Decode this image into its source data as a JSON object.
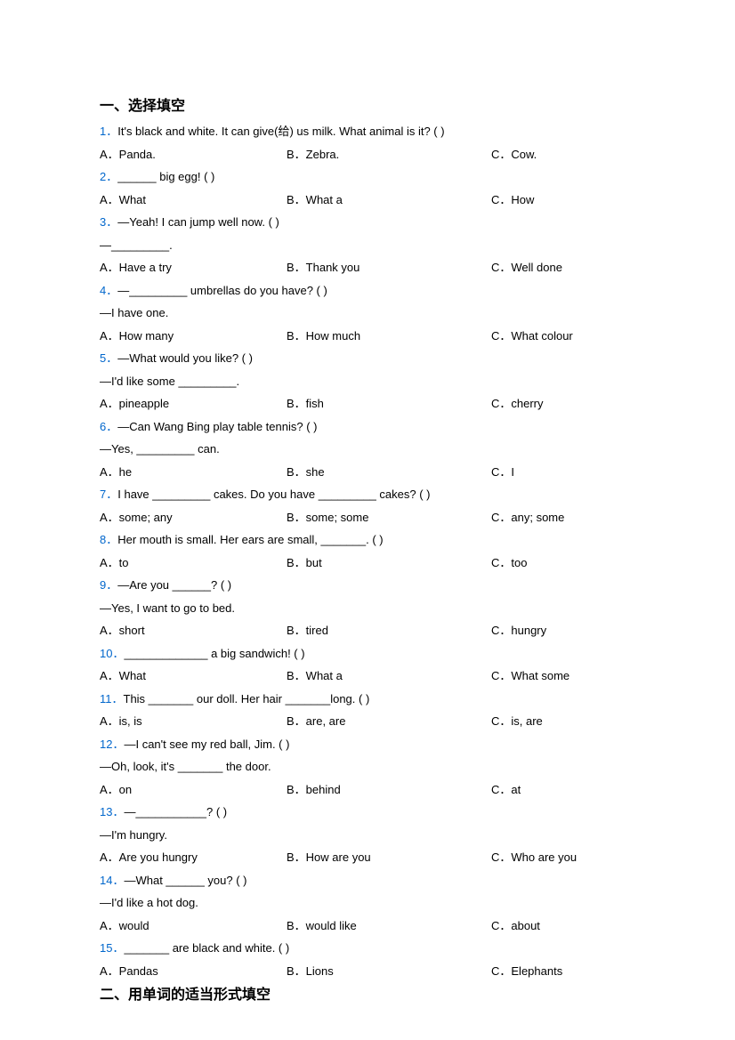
{
  "section1": {
    "heading": "一、选择填空",
    "questions": [
      {
        "num": "1．",
        "text": "It's black and white. It can give(给) us milk. What animal is it? (    )",
        "opts": {
          "a": "A．Panda.",
          "b": "B．Zebra.",
          "c": "C．Cow."
        }
      },
      {
        "num": "2．",
        "text": "______ big egg! (    )",
        "opts": {
          "a": "A．What",
          "b": "B．What a",
          "c": "C．How"
        }
      },
      {
        "num": "3．",
        "text": "—Yeah! I can jump well now. (    )",
        "cont": [
          "—_________."
        ],
        "opts": {
          "a": "A．Have a try",
          "b": "B．Thank you",
          "c": "C．Well done"
        }
      },
      {
        "num": "4．",
        "text": "—_________ umbrellas do you have? (    )",
        "cont": [
          "—I have one."
        ],
        "opts": {
          "a": "A．How many",
          "b": "B．How much",
          "c": "C．What colour"
        }
      },
      {
        "num": "5．",
        "text": "—What would you like? (    )",
        "cont": [
          "—I'd like some _________."
        ],
        "opts": {
          "a": "A．pineapple",
          "b": "B．fish",
          "c": "C．cherry"
        }
      },
      {
        "num": "6．",
        "text": "—Can Wang Bing play table tennis? (    )",
        "cont": [
          "—Yes, _________ can."
        ],
        "opts": {
          "a": "A．he",
          "b": "B．she",
          "c": "C．I"
        }
      },
      {
        "num": "7．",
        "text": "I have _________ cakes. Do you have _________ cakes? (    )",
        "opts": {
          "a": "A．some; any",
          "b": "B．some; some",
          "c": "C．any; some"
        }
      },
      {
        "num": "8．",
        "text": "Her mouth is small. Her ears are small, _______. (    )",
        "opts": {
          "a": "A．to",
          "b": "B．but",
          "c": "C．too"
        }
      },
      {
        "num": "9．",
        "text": "—Are you ______? (     )",
        "cont": [
          "—Yes, I want to go to bed."
        ],
        "opts": {
          "a": "A．short",
          "b": "B．tired",
          "c": "C．hungry"
        }
      },
      {
        "num": "10．",
        "text": "_____________ a big sandwich! (    )",
        "opts": {
          "a": "A．What",
          "b": "B．What a",
          "c": "C．What some"
        }
      },
      {
        "num": "11．",
        "text": "This _______ our doll. Her hair _______long. (     )",
        "opts": {
          "a": "A．is, is",
          "b": "B．are, are",
          "c": "C．is, are"
        }
      },
      {
        "num": "12．",
        "text": "—I can't see my red ball, Jim. (     )",
        "cont": [
          "—Oh, look, it's _______ the door."
        ],
        "opts": {
          "a": "A．on",
          "b": "B．behind",
          "c": "C．at"
        }
      },
      {
        "num": "13．",
        "text": "—___________? (     )",
        "cont": [
          "—I'm hungry."
        ],
        "opts": {
          "a": "A．Are you hungry",
          "b": "B．How are you",
          "c": "C．Who are you"
        }
      },
      {
        "num": "14．",
        "text": "—What ______ you? (    )",
        "cont": [
          "—I'd like a hot dog."
        ],
        "opts": {
          "a": "A．would",
          "b": "B．would like",
          "c": "C．about"
        }
      },
      {
        "num": "15．",
        "text": "_______ are black and white. (    )",
        "opts": {
          "a": "A．Pandas",
          "b": "B．Lions",
          "c": "C．Elephants"
        }
      }
    ]
  },
  "section2": {
    "heading": "二、用单词的适当形式填空"
  }
}
